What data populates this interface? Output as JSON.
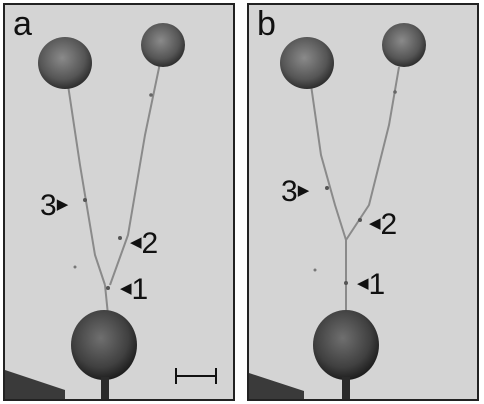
{
  "figure": {
    "panel_a": {
      "label": "a",
      "markers": [
        {
          "id": "3",
          "arrow": "▶"
        },
        {
          "id": "2",
          "arrow": "◀"
        },
        {
          "id": "1",
          "arrow": "◀"
        }
      ],
      "scale_bar": true
    },
    "panel_b": {
      "label": "b",
      "markers": [
        {
          "id": "3",
          "arrow": "▶"
        },
        {
          "id": "2",
          "arrow": "◀"
        },
        {
          "id": "1",
          "arrow": "◀"
        }
      ]
    }
  },
  "colors": {
    "background": "#d4d4d4",
    "drop": "#4a4a4a",
    "thread": "#7a7a7a",
    "border": "#222222"
  }
}
